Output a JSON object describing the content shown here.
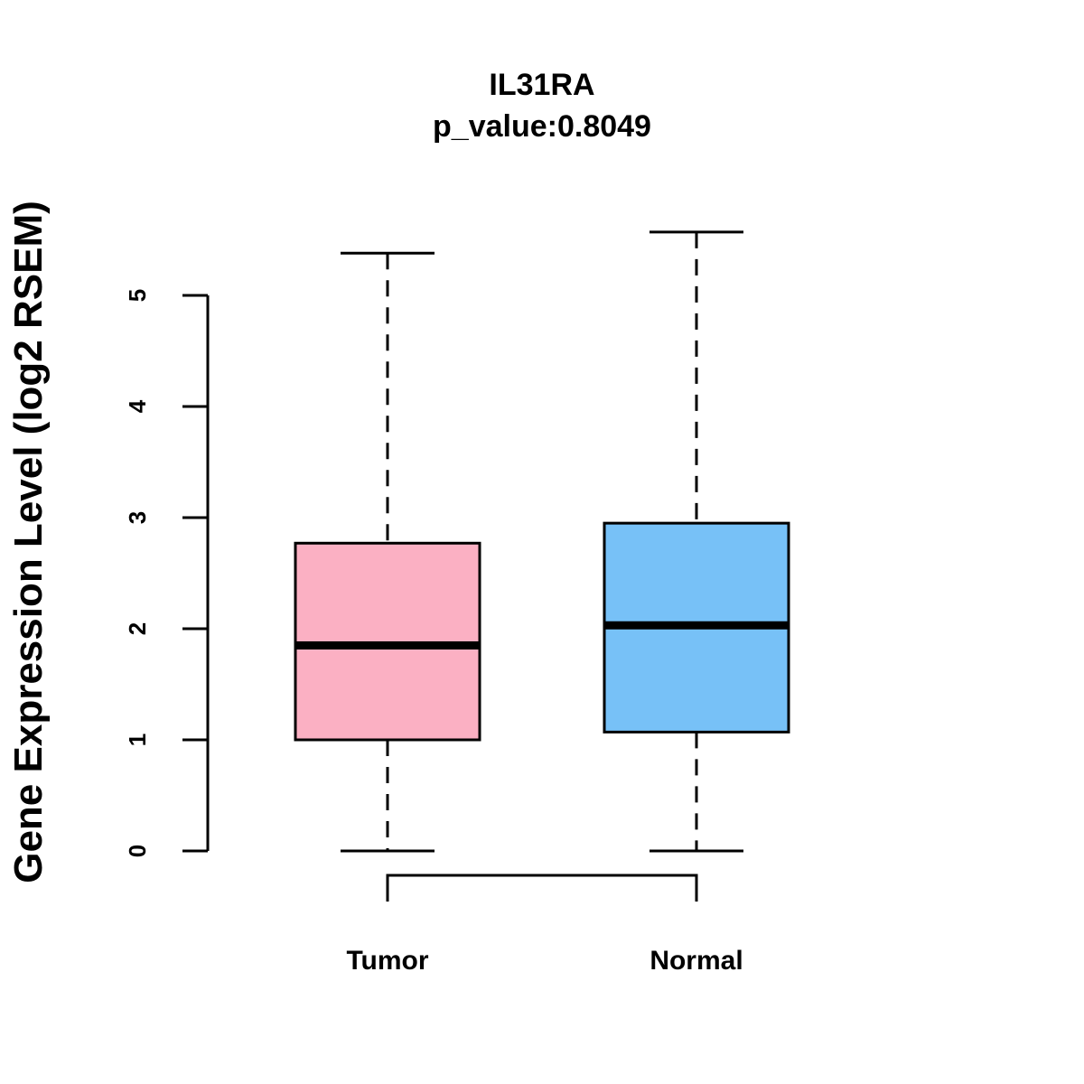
{
  "chart_data": {
    "type": "box",
    "title": "IL31RA",
    "subtitle": "p_value:0.8049",
    "ylabel": "Gene Expression Level (log2 RSEM)",
    "xlabel": "",
    "ylim": [
      0,
      5
    ],
    "yticks": [
      "0",
      "1",
      "2",
      "3",
      "4",
      "5"
    ],
    "categories": [
      "Tumor",
      "Normal"
    ],
    "series": [
      {
        "name": "Tumor",
        "min": 0,
        "q1": 1.0,
        "median": 1.85,
        "q3": 2.77,
        "max": 5.38,
        "color": "#FBB0C3"
      },
      {
        "name": "Normal",
        "min": 0,
        "q1": 1.07,
        "median": 2.03,
        "q3": 2.95,
        "max": 5.57,
        "color": "#77C1F7"
      }
    ],
    "comparison_bracket": [
      "Tumor",
      "Normal"
    ]
  }
}
